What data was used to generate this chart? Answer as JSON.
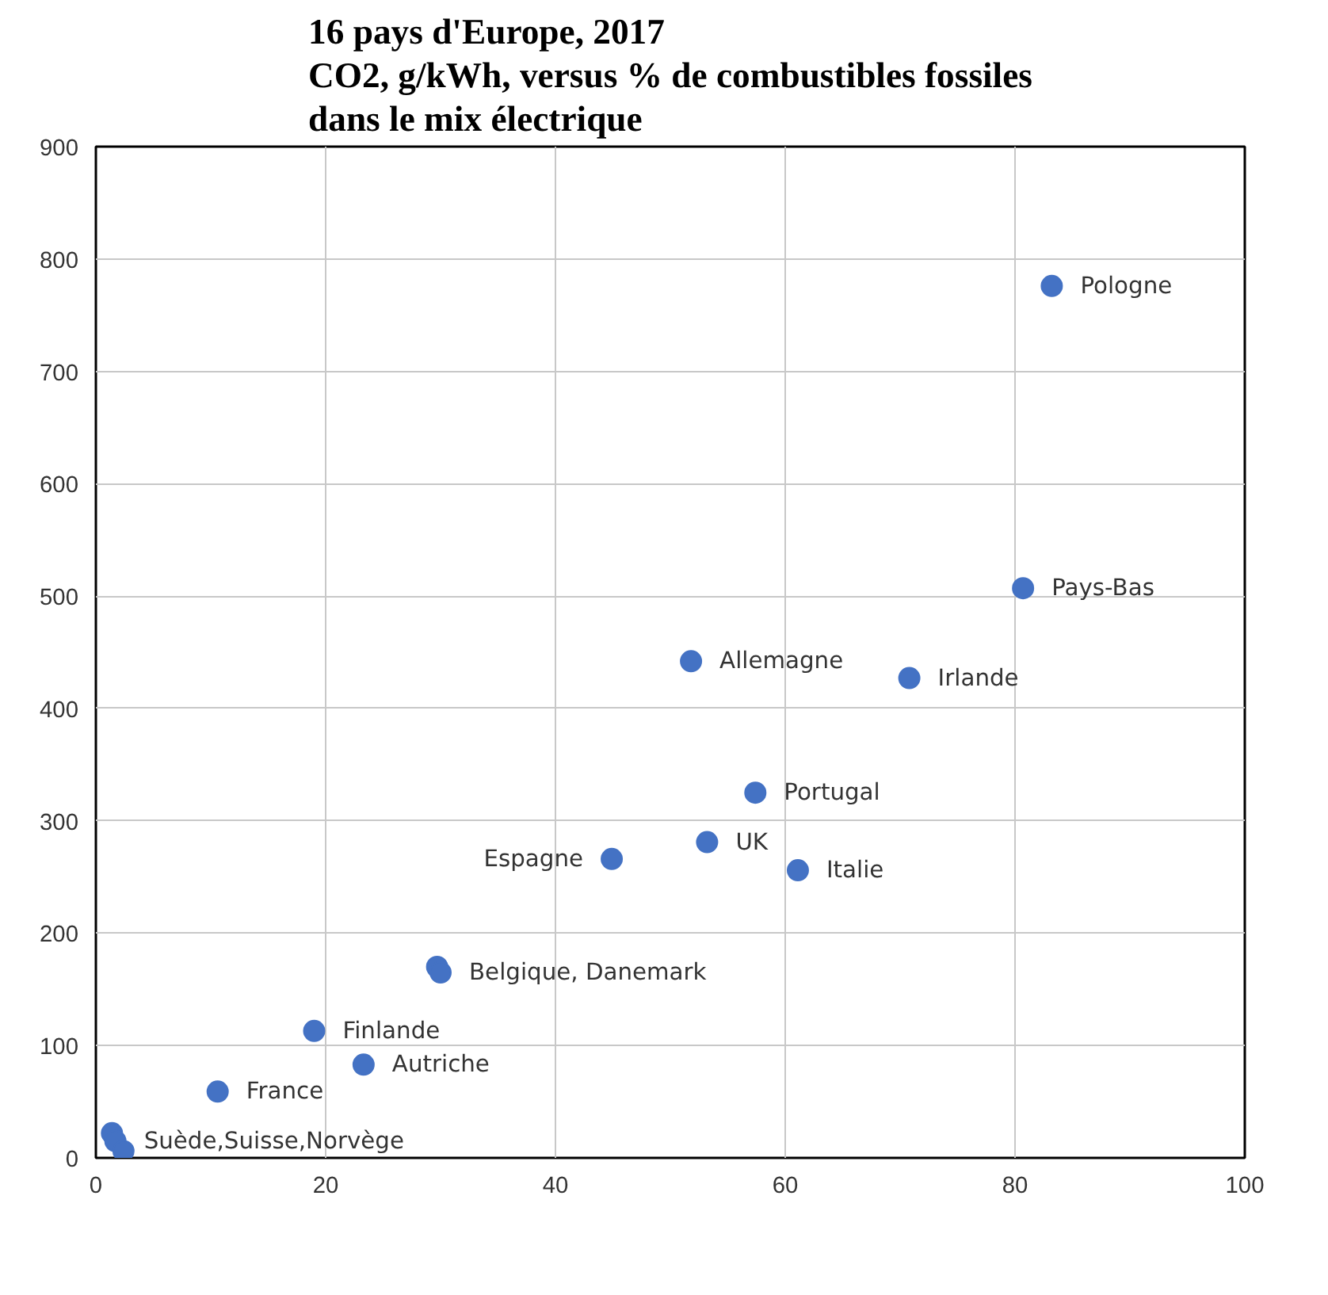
{
  "chart_data": {
    "type": "scatter",
    "title": "16 pays d'Europe, 2017\nCO2, g/kWh, versus % de combustibles fossiles\ndans le mix électrique",
    "x": [
      83.2,
      80.7,
      51.8,
      70.8,
      57.4,
      53.2,
      44.9,
      61.1,
      29.7,
      30.0,
      19.0,
      23.3,
      10.6,
      1.4,
      1.7,
      2.4
    ],
    "series": [
      {
        "color": "#4472c4",
        "values": [
          776,
          507,
          442,
          427,
          325,
          281,
          266,
          256,
          170,
          165,
          113,
          83,
          59,
          22,
          15,
          6
        ]
      }
    ],
    "xlim": [
      0,
      100
    ],
    "xticks": [
      0,
      20,
      40,
      60,
      80,
      100
    ],
    "ylim": [
      0,
      900
    ],
    "yticks": [
      0,
      100,
      200,
      300,
      400,
      500,
      600,
      700,
      800,
      900
    ],
    "grid": true,
    "marker": "circle",
    "annotations": [
      {
        "text": "Pologne",
        "x": 83.2,
        "y": 776
      },
      {
        "text": "Pays-Bas",
        "x": 80.7,
        "y": 507
      },
      {
        "text": "Allemagne",
        "x": 51.8,
        "y": 442
      },
      {
        "text": "Irlande",
        "x": 70.8,
        "y": 427
      },
      {
        "text": "Portugal",
        "x": 57.4,
        "y": 325
      },
      {
        "text": "UK",
        "x": 53.2,
        "y": 281
      },
      {
        "text": "Espagne",
        "x": 44.9,
        "y": 266
      },
      {
        "text": "Italie",
        "x": 61.1,
        "y": 256
      },
      {
        "text": "Belgique, Danemark",
        "x": 30.0,
        "y": 165
      },
      {
        "text": "Finlande",
        "x": 19.0,
        "y": 113
      },
      {
        "text": "Autriche",
        "x": 23.3,
        "y": 83
      },
      {
        "text": "France",
        "x": 10.6,
        "y": 59
      },
      {
        "text": "Suède,Suisse,Norvège",
        "x": 1.7,
        "y": 15
      }
    ]
  }
}
